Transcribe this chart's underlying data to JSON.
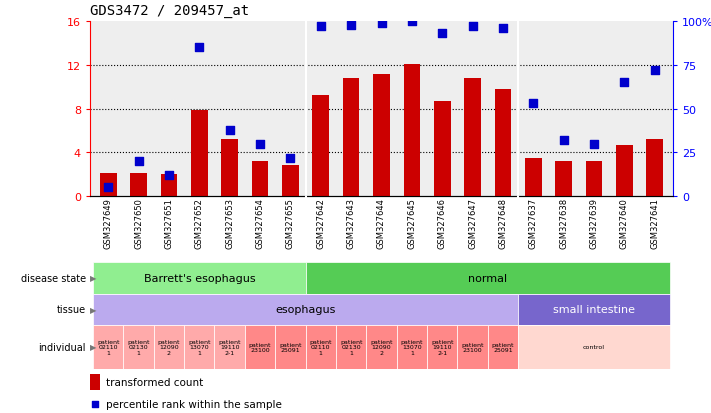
{
  "title": "GDS3472 / 209457_at",
  "samples": [
    "GSM327649",
    "GSM327650",
    "GSM327651",
    "GSM327652",
    "GSM327653",
    "GSM327654",
    "GSM327655",
    "GSM327642",
    "GSM327643",
    "GSM327644",
    "GSM327645",
    "GSM327646",
    "GSM327647",
    "GSM327648",
    "GSM327637",
    "GSM327638",
    "GSM327639",
    "GSM327640",
    "GSM327641"
  ],
  "transformed_count": [
    2.1,
    2.1,
    2.0,
    7.9,
    5.2,
    3.2,
    2.8,
    9.2,
    10.8,
    11.2,
    12.1,
    8.7,
    10.8,
    9.8,
    3.5,
    3.2,
    3.2,
    4.7,
    5.2
  ],
  "percentile_rank": [
    5,
    20,
    12,
    85,
    38,
    30,
    22,
    97,
    98,
    99,
    100,
    93,
    97,
    96,
    53,
    32,
    30,
    65,
    72
  ],
  "ylim_left": [
    0,
    16
  ],
  "ylim_right": [
    0,
    100
  ],
  "yticks_left": [
    0,
    4,
    8,
    12,
    16
  ],
  "yticks_right": [
    0,
    25,
    50,
    75,
    100
  ],
  "bar_color": "#CC0000",
  "dot_color": "#0000CC",
  "dot_size": 28,
  "disease_groups": [
    {
      "label": "Barrett's esophagus",
      "start": 0,
      "end": 7,
      "color": "#90EE90"
    },
    {
      "label": "normal",
      "start": 7,
      "end": 19,
      "color": "#55CC55"
    }
  ],
  "tissue_groups": [
    {
      "label": "esophagus",
      "start": 0,
      "end": 14,
      "color": "#BBAAEE"
    },
    {
      "label": "small intestine",
      "start": 14,
      "end": 19,
      "color": "#7766CC"
    }
  ],
  "individual_groups": [
    {
      "label": "patient\n02110\n1",
      "start": 0,
      "end": 1,
      "color": "#FFAAAA"
    },
    {
      "label": "patient\n02130\n1",
      "start": 1,
      "end": 2,
      "color": "#FFAAAA"
    },
    {
      "label": "patient\n12090\n2",
      "start": 2,
      "end": 3,
      "color": "#FFAAAA"
    },
    {
      "label": "patient\n13070\n1",
      "start": 3,
      "end": 4,
      "color": "#FFAAAA"
    },
    {
      "label": "patient\n19110\n2-1",
      "start": 4,
      "end": 5,
      "color": "#FFAAAA"
    },
    {
      "label": "patient\n23100",
      "start": 5,
      "end": 6,
      "color": "#FF8888"
    },
    {
      "label": "patient\n25091",
      "start": 6,
      "end": 7,
      "color": "#FF8888"
    },
    {
      "label": "patient\n02110\n1",
      "start": 7,
      "end": 8,
      "color": "#FF8888"
    },
    {
      "label": "patient\n02130\n1",
      "start": 8,
      "end": 9,
      "color": "#FF8888"
    },
    {
      "label": "patient\n12090\n2",
      "start": 9,
      "end": 10,
      "color": "#FF8888"
    },
    {
      "label": "patient\n13070\n1",
      "start": 10,
      "end": 11,
      "color": "#FF8888"
    },
    {
      "label": "patient\n19110\n2-1",
      "start": 11,
      "end": 12,
      "color": "#FF8888"
    },
    {
      "label": "patient\n23100",
      "start": 12,
      "end": 13,
      "color": "#FF8888"
    },
    {
      "label": "patient\n25091",
      "start": 13,
      "end": 14,
      "color": "#FF8888"
    },
    {
      "label": "control",
      "start": 14,
      "end": 19,
      "color": "#FFD8D0"
    }
  ],
  "legend_bar_label": "transformed count",
  "legend_dot_label": "percentile rank within the sample",
  "plot_bg": "#EEEEEE",
  "xtick_bg": "#DDDDDD"
}
